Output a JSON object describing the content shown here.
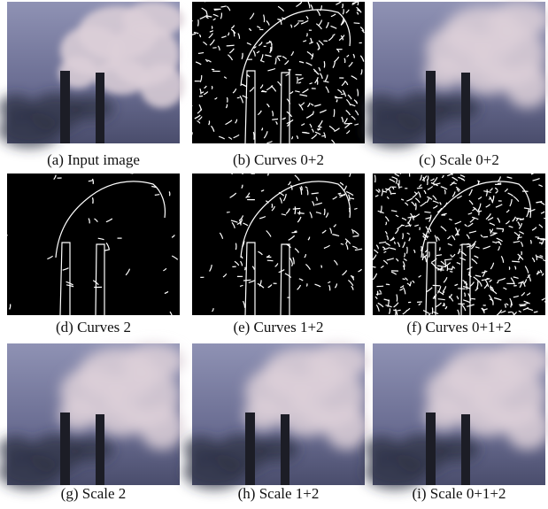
{
  "panels": [
    {
      "caption": "(a) Input image"
    },
    {
      "caption": "(b) Curves 0+2"
    },
    {
      "caption": "(c) Scale 0+2"
    },
    {
      "caption": "(d) Curves 2"
    },
    {
      "caption": "(e) Curves 1+2"
    },
    {
      "caption": "(f) Curves 0+1+2"
    },
    {
      "caption": "(g) Scale 2"
    },
    {
      "caption": "(h) Scale 1+2"
    },
    {
      "caption": "(i) Scale 0+1+2"
    }
  ]
}
